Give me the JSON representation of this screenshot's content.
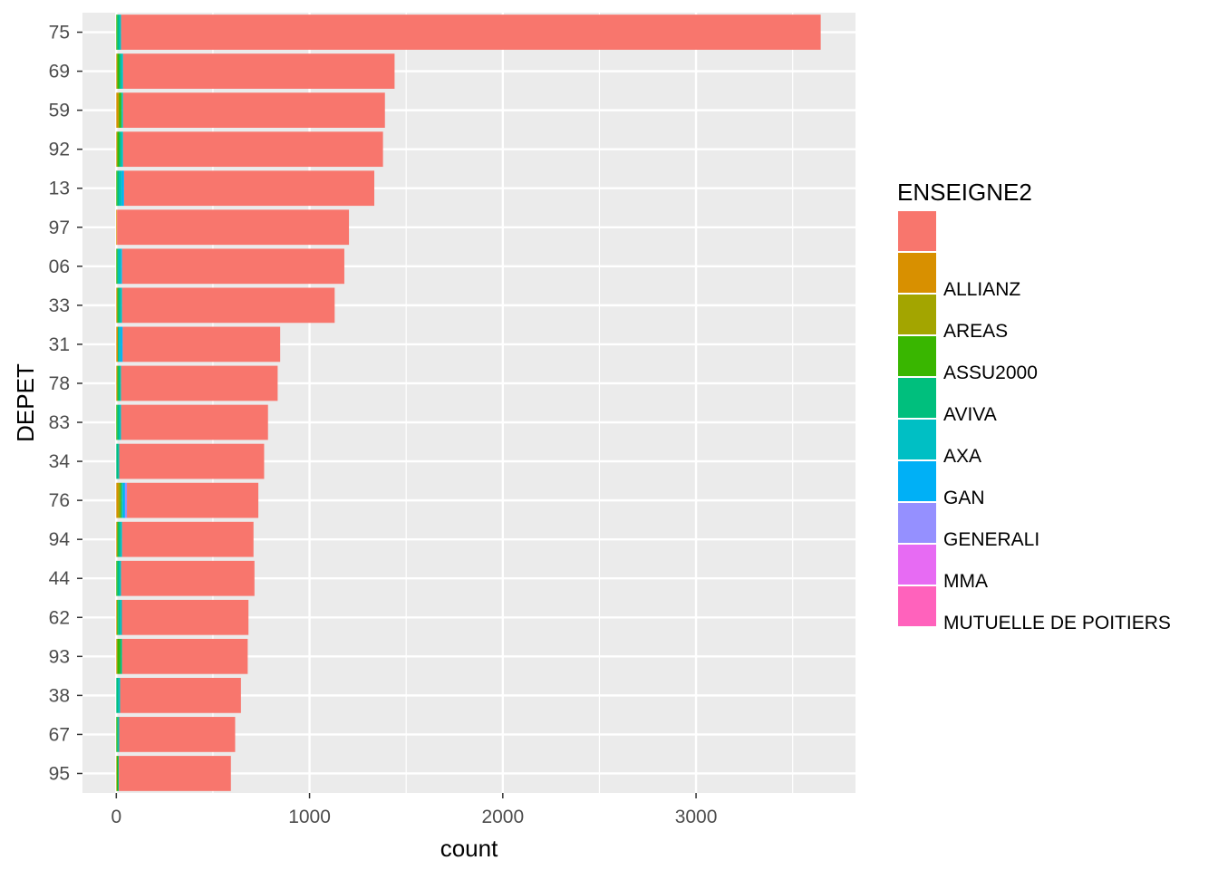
{
  "chart_data": {
    "type": "bar",
    "orientation": "horizontal",
    "stacked": true,
    "xlabel": "count",
    "ylabel": "DEPET",
    "xlim": [
      -175,
      3825
    ],
    "x_ticks": [
      0,
      1000,
      2000,
      3000
    ],
    "grid": true,
    "legend": {
      "title": "ENSEIGNE2",
      "placement": "right"
    },
    "categories": [
      "75",
      "69",
      "59",
      "92",
      "13",
      "97",
      "06",
      "33",
      "31",
      "78",
      "83",
      "34",
      "76",
      "94",
      "44",
      "62",
      "93",
      "38",
      "67",
      "95"
    ],
    "series": [
      {
        "name": "ALLIANZ",
        "color": "#D89000",
        "values": [
          0,
          5,
          10,
          5,
          0,
          4,
          0,
          5,
          8,
          5,
          0,
          0,
          10,
          5,
          0,
          4,
          5,
          0,
          0,
          0
        ]
      },
      {
        "name": "AREAS",
        "color": "#A3A500",
        "values": [
          0,
          0,
          5,
          0,
          0,
          0,
          0,
          0,
          0,
          0,
          0,
          0,
          10,
          0,
          0,
          0,
          0,
          0,
          0,
          3
        ]
      },
      {
        "name": "ASSU2000",
        "color": "#39B600",
        "values": [
          5,
          10,
          10,
          10,
          5,
          0,
          5,
          5,
          0,
          5,
          5,
          0,
          5,
          5,
          5,
          5,
          15,
          0,
          5,
          5
        ]
      },
      {
        "name": "AVIVA",
        "color": "#00BF7D",
        "values": [
          10,
          10,
          5,
          10,
          10,
          0,
          5,
          10,
          5,
          10,
          10,
          10,
          5,
          10,
          10,
          10,
          10,
          10,
          5,
          5
        ]
      },
      {
        "name": "AXA",
        "color": "#00BFC4",
        "values": [
          10,
          10,
          5,
          10,
          15,
          0,
          15,
          10,
          10,
          5,
          10,
          5,
          5,
          10,
          10,
          10,
          0,
          10,
          5,
          0
        ]
      },
      {
        "name": "GAN",
        "color": "#00B0F6",
        "values": [
          0,
          0,
          0,
          0,
          10,
          0,
          5,
          0,
          10,
          0,
          0,
          0,
          10,
          0,
          0,
          0,
          0,
          0,
          0,
          0
        ]
      },
      {
        "name": "GENERALI",
        "color": "#9590FF",
        "values": [
          0,
          0,
          0,
          0,
          0,
          0,
          0,
          0,
          0,
          0,
          0,
          0,
          10,
          0,
          0,
          0,
          0,
          0,
          0,
          0
        ]
      },
      {
        "name": "MMA",
        "color": "#E76BF3",
        "values": [
          0,
          0,
          0,
          0,
          0,
          0,
          0,
          0,
          0,
          0,
          0,
          0,
          0,
          0,
          0,
          0,
          0,
          0,
          0,
          0
        ]
      },
      {
        "name": "MUTUELLE DE POITIERS",
        "color": "#FF62BC",
        "values": [
          0,
          0,
          0,
          0,
          0,
          0,
          0,
          0,
          0,
          0,
          0,
          0,
          0,
          0,
          0,
          0,
          0,
          0,
          0,
          0
        ]
      },
      {
        "name": "",
        "color": "#F8766D",
        "values": [
          3620,
          1405,
          1355,
          1345,
          1295,
          1200,
          1150,
          1100,
          815,
          810,
          760,
          750,
          680,
          680,
          690,
          655,
          650,
          625,
          600,
          580
        ]
      }
    ],
    "legend_order": [
      "",
      "ALLIANZ",
      "AREAS",
      "ASSU2000",
      "AVIVA",
      "AXA",
      "GAN",
      "GENERALI",
      "MMA",
      "MUTUELLE DE POITIERS"
    ],
    "colors": {
      "panel_background": "#EBEBEB",
      "grid": "#FFFFFF"
    }
  }
}
